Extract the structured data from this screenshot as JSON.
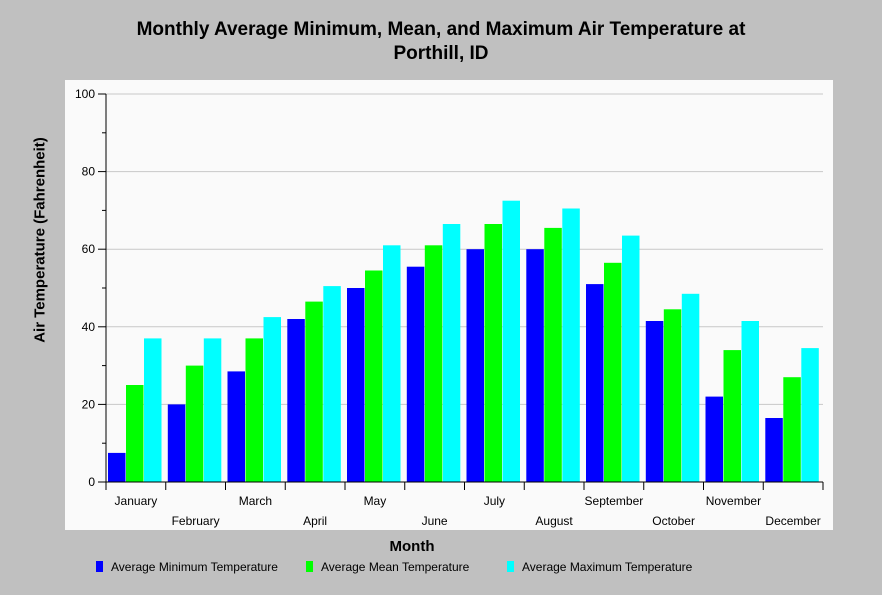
{
  "chart_data": {
    "type": "bar",
    "title_lines": [
      "Monthly Average Minimum, Mean, and Maximum Air Temperature at",
      "Porthill, ID"
    ],
    "xlabel": "Month",
    "ylabel": "Air Temperature (Fahrenheit)",
    "ylim": [
      0,
      100
    ],
    "yticks": [
      0,
      20,
      40,
      60,
      80,
      100
    ],
    "grid": true,
    "legend_position": "bottom",
    "categories": [
      "January",
      "February",
      "March",
      "April",
      "May",
      "June",
      "July",
      "August",
      "September",
      "October",
      "November",
      "December"
    ],
    "series": [
      {
        "name": "Average Minimum Temperature",
        "color": "#0000ff",
        "values": [
          7.5,
          20,
          28.5,
          42,
          50,
          55.5,
          60,
          60,
          51,
          41.5,
          22,
          16.5
        ]
      },
      {
        "name": "Average Mean Temperature",
        "color": "#00ff00",
        "values": [
          25,
          30,
          37,
          46.5,
          54.5,
          61,
          66.5,
          65.5,
          56.5,
          44.5,
          34,
          27
        ]
      },
      {
        "name": "Average Maximum Temperature",
        "color": "#00ffff",
        "values": [
          37,
          37,
          42.5,
          50.5,
          61,
          66.5,
          72.5,
          70.5,
          63.5,
          48.5,
          41.5,
          34.5
        ]
      }
    ]
  }
}
